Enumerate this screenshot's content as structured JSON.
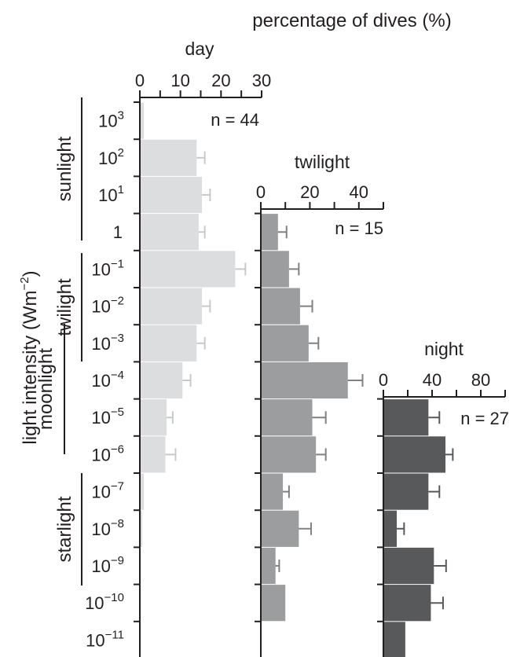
{
  "figure": {
    "top_title": "percentage of dives (%)",
    "ylabel_main": "light intensity (Wm",
    "ylabel_sup": "−2",
    "ylabel_close": ")"
  },
  "chart_data": {
    "type": "bar",
    "orientation": "horizontal",
    "categories": [
      {
        "base": "10",
        "exp": "3"
      },
      {
        "base": "10",
        "exp": "2"
      },
      {
        "base": "10",
        "exp": "1"
      },
      {
        "base": "1",
        "exp": ""
      },
      {
        "base": "10",
        "exp": "−1"
      },
      {
        "base": "10",
        "exp": "−2"
      },
      {
        "base": "10",
        "exp": "−3"
      },
      {
        "base": "10",
        "exp": "−4"
      },
      {
        "base": "10",
        "exp": "−5"
      },
      {
        "base": "10",
        "exp": "−6"
      },
      {
        "base": "10",
        "exp": "−7"
      },
      {
        "base": "10",
        "exp": "−8"
      },
      {
        "base": "10",
        "exp": "−9"
      },
      {
        "base": "10",
        "exp": "−10"
      },
      {
        "base": "10",
        "exp": "−11"
      }
    ],
    "light_regimes": [
      {
        "label": "sunlight"
      },
      {
        "label": "twilight"
      },
      {
        "label": "moonlight"
      },
      {
        "label": "starlight"
      }
    ],
    "series": [
      {
        "name": "day",
        "n_label": "n = 44",
        "color": "#dcdddf",
        "errcolor": "#c8c9cb",
        "xlim": [
          0,
          30
        ],
        "ticks": [
          0,
          10,
          20,
          30
        ],
        "minor_ticks": [
          5,
          15,
          25
        ],
        "values": [
          1,
          14,
          15.3,
          14.5,
          23.5,
          15.3,
          14,
          10.5,
          6.6,
          6.3,
          1,
          0.6,
          0,
          0,
          0
        ],
        "errors": [
          0,
          2,
          2,
          1.5,
          2.5,
          2,
          2,
          2,
          1.5,
          2.5,
          0,
          0,
          0,
          0,
          0
        ]
      },
      {
        "name": "twilight",
        "n_label": "n = 15",
        "color": "#9c9d9f",
        "errcolor": "#808183",
        "xlim": [
          0,
          50
        ],
        "ticks": [
          0,
          20,
          40
        ],
        "minor_ticks": [
          10,
          30,
          50
        ],
        "values": [
          null,
          null,
          null,
          7,
          11.5,
          16,
          19.5,
          35.5,
          21,
          22.5,
          9,
          15.5,
          6,
          10,
          null
        ],
        "errors": [
          0,
          0,
          0,
          3.5,
          4,
          5,
          4,
          6,
          5.5,
          4,
          2.5,
          5,
          1.5,
          0,
          0
        ]
      },
      {
        "name": "night",
        "n_label": "n = 27",
        "color": "#58595b",
        "errcolor": "#58595b",
        "xlim": [
          0,
          100
        ],
        "ticks": [
          0,
          40,
          80
        ],
        "minor_ticks": [
          20,
          60,
          100
        ],
        "values": [
          null,
          null,
          null,
          null,
          null,
          null,
          null,
          null,
          37,
          51,
          37,
          11,
          41.5,
          39,
          18
        ],
        "errors": [
          0,
          0,
          0,
          0,
          0,
          0,
          0,
          0,
          9,
          6,
          9,
          6,
          10,
          10,
          0
        ]
      }
    ]
  }
}
